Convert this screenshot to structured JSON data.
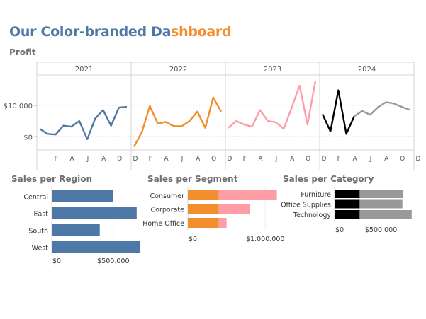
{
  "dashboard": {
    "title_part1": "Our Color-branded Da",
    "title_part2": "shboard",
    "title_color1": "#4e79a7",
    "title_color2": "#f28e2b"
  },
  "chart_data": [
    {
      "type": "line",
      "title": "Profit",
      "panels": [
        {
          "label": "2021",
          "color": "#4e79a7",
          "values": [
            2500,
            900,
            700,
            3500,
            3200,
            5000,
            -800,
            5800,
            8500,
            3500,
            9300,
            9500
          ]
        },
        {
          "label": "2022",
          "color": "#f28e2b",
          "values": [
            -3200,
            1500,
            9800,
            4200,
            4700,
            3400,
            3300,
            5000,
            8000,
            2800,
            12500,
            8000
          ]
        },
        {
          "label": "2023",
          "color": "#ff9da7",
          "values": [
            2800,
            5000,
            3900,
            3200,
            8500,
            5000,
            4600,
            2500,
            9200,
            16300,
            3900,
            17800
          ]
        },
        {
          "label": "2024",
          "color_start": "#000000",
          "color_end": "#999999",
          "split_index": 4,
          "values": [
            7200,
            1700,
            14800,
            900,
            6500,
            8200,
            7000,
            9400,
            11000,
            10600,
            9500,
            8600
          ]
        }
      ],
      "month_labels": [
        "F",
        "A",
        "J",
        "A",
        "O",
        "D"
      ],
      "y_ticks": [
        {
          "value": 0,
          "label": "$0"
        },
        {
          "value": 10000,
          "label": "$10.000"
        }
      ],
      "ylim": [
        -4000,
        19000
      ]
    },
    {
      "type": "bar",
      "title": "Sales per Region",
      "categories": [
        "Central",
        "East",
        "South",
        "West"
      ],
      "values": [
        500000,
        690000,
        390000,
        720000
      ],
      "color": "#4e79a7",
      "x_ticks": [
        {
          "value": 0,
          "label": "$0"
        },
        {
          "value": 500000,
          "label": "$500.000"
        }
      ],
      "xlim": [
        0,
        760000
      ]
    },
    {
      "type": "bar",
      "title": "Sales per Segment",
      "categories": [
        "Consumer",
        "Corporate",
        "Home Office"
      ],
      "series": [
        {
          "color": "#f28e2b",
          "values": [
            400000,
            400000,
            400000
          ]
        },
        {
          "color": "#ff9da7",
          "values": [
            750000,
            400000,
            100000
          ]
        }
      ],
      "x_ticks": [
        {
          "value": 0,
          "label": "$0"
        },
        {
          "value": 1000000,
          "label": "$1.000.000"
        }
      ],
      "xlim": [
        0,
        1300000
      ]
    },
    {
      "type": "bar",
      "title": "Sales per Category",
      "categories": [
        "Furniture",
        "Office Supplies",
        "Technology"
      ],
      "series": [
        {
          "color": "#000000",
          "values": [
            270000,
            270000,
            270000
          ]
        },
        {
          "color": "#999999",
          "values": [
            470000,
            460000,
            560000
          ]
        }
      ],
      "x_ticks": [
        {
          "value": 0,
          "label": "$0"
        },
        {
          "value": 500000,
          "label": "$500.000"
        }
      ],
      "xlim": [
        0,
        900000
      ]
    }
  ]
}
